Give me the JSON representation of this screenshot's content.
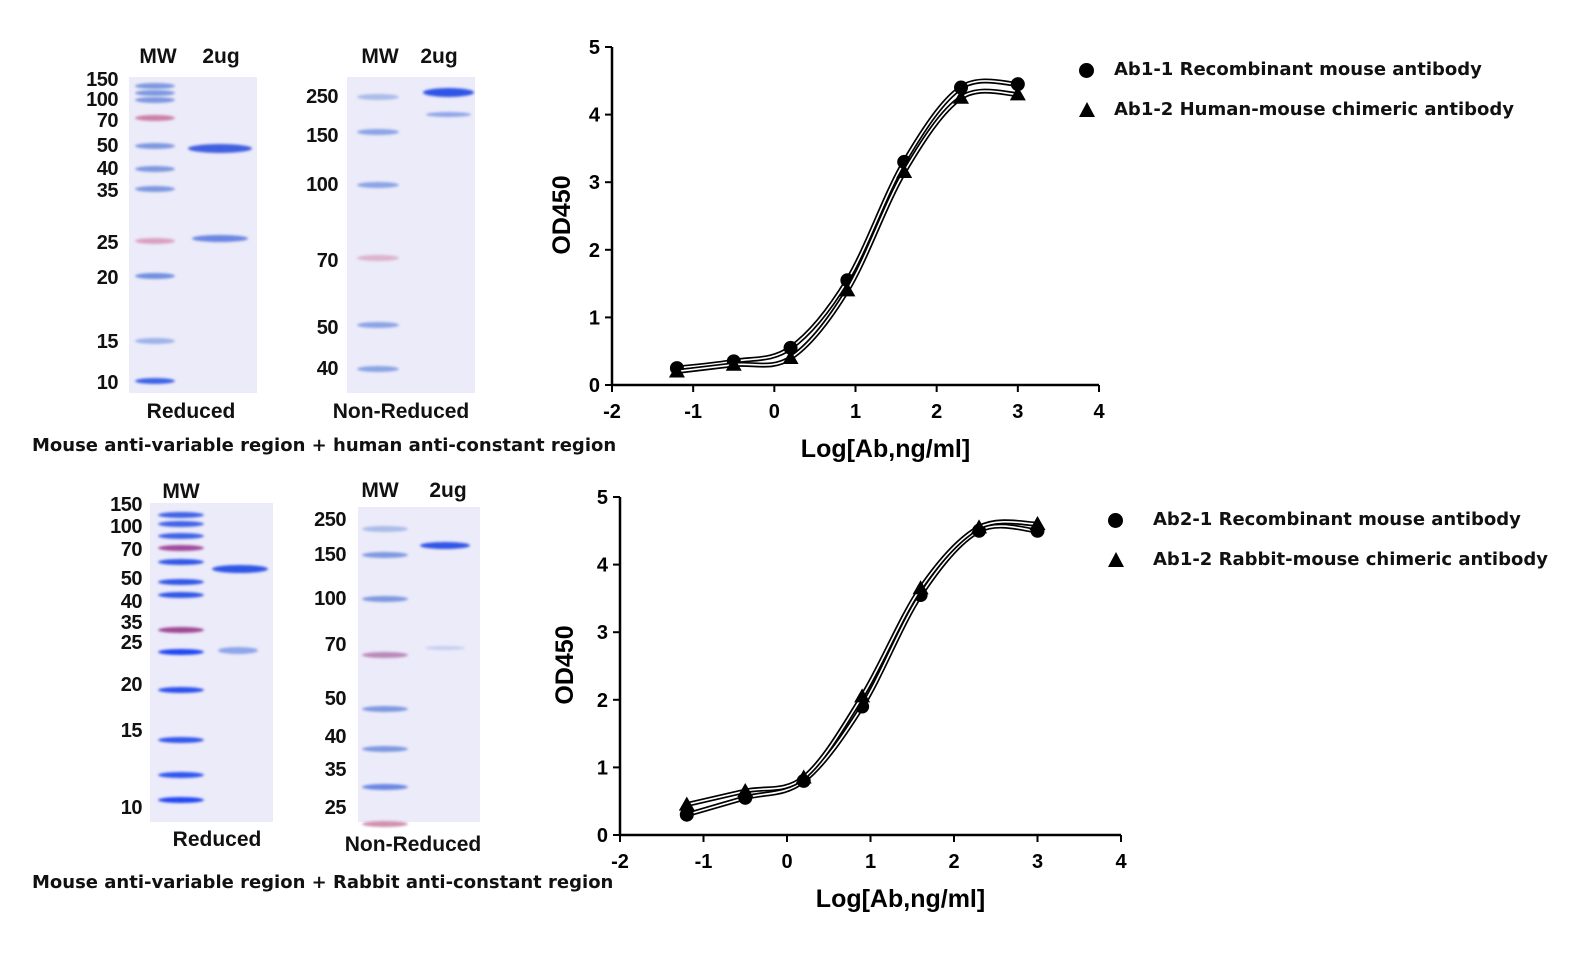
{
  "panels": [
    {
      "gels": [
        {
          "lanes": [
            "MW",
            "2ug"
          ],
          "condition": "Reduced",
          "markers": [
            "150",
            "100",
            "70",
            "50",
            "40",
            "35",
            "25",
            "20",
            "15",
            "10"
          ]
        },
        {
          "lanes": [
            "MW",
            "2ug"
          ],
          "condition": "Non-Reduced",
          "markers": [
            "250",
            "150",
            "100",
            "70",
            "50",
            "40"
          ]
        }
      ],
      "caption": "Mouse anti-variable region + human anti-constant region"
    },
    {
      "gels": [
        {
          "lanes": [
            "MW"
          ],
          "condition": "Reduced",
          "markers": [
            "150",
            "100",
            "70",
            "50",
            "40",
            "35",
            "25",
            "20",
            "15",
            "10"
          ]
        },
        {
          "lanes": [
            "MW",
            "2ug"
          ],
          "condition": "Non-Reduced",
          "markers": [
            "250",
            "150",
            "100",
            "70",
            "50",
            "40",
            "35",
            "25"
          ]
        }
      ],
      "caption": "Mouse anti-variable region + Rabbit anti-constant region"
    }
  ],
  "chart_data": [
    {
      "type": "line",
      "xlabel": "Log[Ab,ng/ml]",
      "ylabel": "OD450",
      "xlim": [
        -2,
        4
      ],
      "ylim": [
        0,
        5
      ],
      "xticks": [
        "-2",
        "-1",
        "0",
        "1",
        "2",
        "3",
        "4"
      ],
      "yticks": [
        "0",
        "1",
        "2",
        "3",
        "4",
        "5"
      ],
      "grid": false,
      "legend_position": "right",
      "x": [
        -1.2,
        -0.5,
        0.2,
        0.9,
        1.6,
        2.3,
        3.0
      ],
      "series": [
        {
          "name": "Ab1-1 Recombinant mouse antibody",
          "marker": "circle",
          "values": [
            0.25,
            0.35,
            0.55,
            1.55,
            3.3,
            4.4,
            4.45
          ]
        },
        {
          "name": "Ab1-2 Human-mouse chimeric antibody",
          "marker": "triangle",
          "values": [
            0.2,
            0.3,
            0.4,
            1.4,
            3.15,
            4.25,
            4.3
          ]
        }
      ]
    },
    {
      "type": "line",
      "xlabel": "Log[Ab,ng/ml]",
      "ylabel": "OD450",
      "xlim": [
        -2,
        4
      ],
      "ylim": [
        0,
        5
      ],
      "xticks": [
        "-2",
        "-1",
        "0",
        "1",
        "2",
        "3",
        "4"
      ],
      "yticks": [
        "0",
        "1",
        "2",
        "3",
        "4",
        "5"
      ],
      "grid": false,
      "legend_position": "right",
      "x": [
        -1.2,
        -0.5,
        0.2,
        0.9,
        1.6,
        2.3,
        3.0
      ],
      "series": [
        {
          "name": "Ab2-1 Recombinant mouse antibody",
          "marker": "circle",
          "values": [
            0.3,
            0.55,
            0.8,
            1.9,
            3.55,
            4.5,
            4.5
          ]
        },
        {
          "name": "Ab1-2 Rabbit-mouse chimeric antibody",
          "marker": "triangle",
          "values": [
            0.45,
            0.65,
            0.85,
            2.05,
            3.65,
            4.55,
            4.6
          ]
        }
      ]
    }
  ]
}
